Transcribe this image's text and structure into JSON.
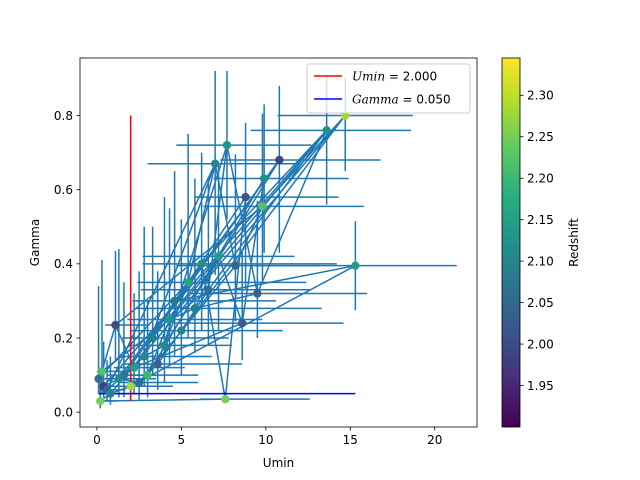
{
  "chart_data": {
    "type": "scatter",
    "xlabel": "Umin",
    "ylabel": "Gamma",
    "xlim": [
      -1.0,
      22.5
    ],
    "ylim": [
      -0.04,
      0.955
    ],
    "xticks": [
      0,
      5,
      10,
      15,
      20
    ],
    "xtick_labels": [
      "0",
      "5",
      "10",
      "15",
      "20"
    ],
    "yticks": [
      0.0,
      0.2,
      0.4,
      0.6,
      0.8
    ],
    "ytick_labels": [
      "0.0",
      "0.2",
      "0.4",
      "0.6",
      "0.8"
    ],
    "grid": false,
    "legend_position": "top-right",
    "colorbar": {
      "label": "Redshift",
      "min": 1.9,
      "max": 2.345,
      "ticks": [
        1.95,
        2.0,
        2.05,
        2.1,
        2.15,
        2.2,
        2.25,
        2.3
      ],
      "tick_labels": [
        "1.95",
        "2.00",
        "2.05",
        "2.10",
        "2.15",
        "2.20",
        "2.25",
        "2.30"
      ],
      "colormap": "viridis"
    },
    "reference_lines": [
      {
        "label": "Umin = 2.000",
        "label_parts": [
          "Umin",
          " = 2.000"
        ],
        "color": "#ff0000",
        "orientation": "vertical",
        "x": 2.0,
        "y_range": [
          0.03,
          0.8
        ]
      },
      {
        "label": "Gamma = 0.050",
        "label_parts": [
          "Gamma",
          " = 0.050"
        ],
        "color": "#0000ff",
        "orientation": "horizontal",
        "y": 0.05,
        "x_range": [
          0.1,
          15.3
        ]
      }
    ],
    "connecting_line_color": "#1f77b4",
    "points": [
      {
        "x": 0.1,
        "y": 0.09,
        "xerr": [
          0.1,
          1.2
        ],
        "yerr": [
          0.04,
          0.25
        ],
        "z": 2.07
      },
      {
        "x": 0.2,
        "y": 0.03,
        "xerr": [
          0.2,
          1.0
        ],
        "yerr": [
          0.02,
          0.05
        ],
        "z": 2.25
      },
      {
        "x": 0.3,
        "y": 0.11,
        "xerr": [
          0.3,
          1.5
        ],
        "yerr": [
          0.06,
          0.3
        ],
        "z": 2.22
      },
      {
        "x": 0.4,
        "y": 0.07,
        "xerr": [
          0.3,
          0.8
        ],
        "yerr": [
          0.03,
          0.12
        ],
        "z": 1.98
      },
      {
        "x": 0.6,
        "y": 0.06,
        "xerr": [
          0.4,
          1.1
        ],
        "yerr": [
          0.03,
          0.08
        ],
        "z": 2.05
      },
      {
        "x": 0.8,
        "y": 0.05,
        "xerr": [
          0.5,
          1.6
        ],
        "yerr": [
          0.03,
          0.1
        ],
        "z": 2.1
      },
      {
        "x": 1.1,
        "y": 0.235,
        "xerr": [
          0.6,
          2.0
        ],
        "yerr": [
          0.1,
          0.2
        ],
        "z": 2.0
      },
      {
        "x": 1.3,
        "y": 0.09,
        "xerr": [
          0.8,
          2.2
        ],
        "yerr": [
          0.05,
          0.35
        ],
        "z": 2.12
      },
      {
        "x": 1.6,
        "y": 0.1,
        "xerr": [
          1.0,
          2.0
        ],
        "yerr": [
          0.06,
          0.25
        ],
        "z": 2.08
      },
      {
        "x": 2.0,
        "y": 0.07,
        "xerr": [
          1.0,
          2.5
        ],
        "yerr": [
          0.04,
          0.15
        ],
        "z": 2.28
      },
      {
        "x": 2.2,
        "y": 0.12,
        "xerr": [
          1.2,
          3.0
        ],
        "yerr": [
          0.07,
          0.2
        ],
        "z": 2.15
      },
      {
        "x": 2.5,
        "y": 0.08,
        "xerr": [
          1.2,
          3.5
        ],
        "yerr": [
          0.05,
          0.3
        ],
        "z": 2.06
      },
      {
        "x": 2.8,
        "y": 0.15,
        "xerr": [
          1.5,
          4.0
        ],
        "yerr": [
          0.08,
          0.35
        ],
        "z": 2.1
      },
      {
        "x": 3.0,
        "y": 0.1,
        "xerr": [
          1.5,
          3.0
        ],
        "yerr": [
          0.06,
          0.2
        ],
        "z": 2.2
      },
      {
        "x": 3.3,
        "y": 0.2,
        "xerr": [
          1.8,
          4.5
        ],
        "yerr": [
          0.1,
          0.3
        ],
        "z": 2.09
      },
      {
        "x": 3.6,
        "y": 0.13,
        "xerr": [
          2.0,
          5.0
        ],
        "yerr": [
          0.07,
          0.25
        ],
        "z": 2.04
      },
      {
        "x": 4.0,
        "y": 0.18,
        "xerr": [
          2.0,
          4.0
        ],
        "yerr": [
          0.1,
          0.4
        ],
        "z": 2.11
      },
      {
        "x": 4.3,
        "y": 0.25,
        "xerr": [
          2.5,
          5.5
        ],
        "yerr": [
          0.12,
          0.3
        ],
        "z": 2.13
      },
      {
        "x": 4.6,
        "y": 0.3,
        "xerr": [
          2.5,
          6.0
        ],
        "yerr": [
          0.15,
          0.35
        ],
        "z": 2.07
      },
      {
        "x": 5.0,
        "y": 0.22,
        "xerr": [
          3.0,
          6.0
        ],
        "yerr": [
          0.12,
          0.3
        ],
        "z": 2.1
      },
      {
        "x": 5.4,
        "y": 0.35,
        "xerr": [
          3.0,
          7.0
        ],
        "yerr": [
          0.15,
          0.4
        ],
        "z": 2.16
      },
      {
        "x": 5.8,
        "y": 0.28,
        "xerr": [
          3.5,
          7.5
        ],
        "yerr": [
          0.12,
          0.35
        ],
        "z": 2.09
      },
      {
        "x": 6.2,
        "y": 0.4,
        "xerr": [
          3.5,
          8.0
        ],
        "yerr": [
          0.18,
          0.3
        ],
        "z": 2.12
      },
      {
        "x": 6.6,
        "y": 0.33,
        "xerr": [
          4.0,
          6.0
        ],
        "yerr": [
          0.15,
          0.3
        ],
        "z": 2.06
      },
      {
        "x": 7.0,
        "y": 0.67,
        "xerr": [
          4.0,
          5.0
        ],
        "yerr": [
          0.3,
          0.25
        ],
        "z": 2.1
      },
      {
        "x": 7.2,
        "y": 0.42,
        "xerr": [
          4.5,
          4.5
        ],
        "yerr": [
          0.2,
          0.25
        ],
        "z": 2.14
      },
      {
        "x": 7.6,
        "y": 0.035,
        "xerr": [
          1.5,
          5.0
        ],
        "yerr": [
          0.01,
          0.02
        ],
        "z": 2.25
      },
      {
        "x": 7.7,
        "y": 0.72,
        "xerr": [
          3.0,
          5.0
        ],
        "yerr": [
          0.2,
          0.2
        ],
        "z": 2.13
      },
      {
        "x": 8.2,
        "y": 0.395,
        "xerr": [
          3.5,
          5.0
        ],
        "yerr": [
          0.15,
          0.3
        ],
        "z": 2.05
      },
      {
        "x": 8.6,
        "y": 0.24,
        "xerr": [
          4.0,
          6.0
        ],
        "yerr": [
          0.1,
          0.2
        ],
        "z": 2.03
      },
      {
        "x": 8.8,
        "y": 0.58,
        "xerr": [
          3.0,
          5.5
        ],
        "yerr": [
          0.25,
          0.2
        ],
        "z": 2.02
      },
      {
        "x": 9.5,
        "y": 0.32,
        "xerr": [
          4.0,
          6.5
        ],
        "yerr": [
          0.12,
          0.25
        ],
        "z": 2.04
      },
      {
        "x": 9.8,
        "y": 0.555,
        "xerr": [
          3.5,
          6.0
        ],
        "yerr": [
          0.2,
          0.25
        ],
        "z": 2.22
      },
      {
        "x": 9.9,
        "y": 0.63,
        "xerr": [
          3.0,
          5.0
        ],
        "yerr": [
          0.2,
          0.2
        ],
        "z": 2.12
      },
      {
        "x": 10.8,
        "y": 0.68,
        "xerr": [
          3.5,
          6.0
        ],
        "yerr": [
          0.25,
          0.2
        ],
        "z": 1.99
      },
      {
        "x": 13.6,
        "y": 0.76,
        "xerr": [
          4.5,
          5.0
        ],
        "yerr": [
          0.2,
          0.15
        ],
        "z": 2.12
      },
      {
        "x": 14.7,
        "y": 0.8,
        "xerr": [
          4.0,
          4.0
        ],
        "yerr": [
          0.15,
          0.1
        ],
        "z": 2.28
      },
      {
        "x": 15.3,
        "y": 0.395,
        "xerr": [
          6.0,
          6.0
        ],
        "yerr": [
          0.12,
          0.12
        ],
        "z": 2.14
      }
    ],
    "connection_pairs": [
      [
        0,
        2
      ],
      [
        2,
        6
      ],
      [
        6,
        10
      ],
      [
        10,
        14
      ],
      [
        14,
        18
      ],
      [
        18,
        22
      ],
      [
        22,
        26
      ],
      [
        26,
        30
      ],
      [
        1,
        5
      ],
      [
        5,
        9
      ],
      [
        9,
        13
      ],
      [
        13,
        17
      ],
      [
        17,
        21
      ],
      [
        21,
        25
      ],
      [
        25,
        29
      ],
      [
        29,
        33
      ],
      [
        3,
        7
      ],
      [
        7,
        11
      ],
      [
        11,
        15
      ],
      [
        15,
        19
      ],
      [
        19,
        23
      ],
      [
        23,
        27
      ],
      [
        27,
        31
      ],
      [
        31,
        35
      ],
      [
        4,
        8
      ],
      [
        8,
        12
      ],
      [
        12,
        16
      ],
      [
        16,
        20
      ],
      [
        20,
        24
      ],
      [
        24,
        28
      ],
      [
        28,
        32
      ],
      [
        32,
        36
      ],
      [
        3,
        35
      ],
      [
        5,
        36
      ],
      [
        8,
        34
      ],
      [
        12,
        24
      ],
      [
        15,
        27
      ],
      [
        18,
        37
      ],
      [
        20,
        30
      ],
      [
        22,
        35
      ],
      [
        9,
        37
      ],
      [
        6,
        32
      ],
      [
        11,
        28
      ],
      [
        16,
        34
      ],
      [
        19,
        36
      ],
      [
        4,
        24
      ],
      [
        0,
        20
      ],
      [
        1,
        26
      ],
      [
        13,
        33
      ],
      [
        17,
        35
      ],
      [
        21,
        31
      ],
      [
        10,
        29
      ],
      [
        14,
        25
      ],
      [
        2,
        23
      ],
      [
        7,
        34
      ],
      [
        23,
        35
      ]
    ]
  }
}
